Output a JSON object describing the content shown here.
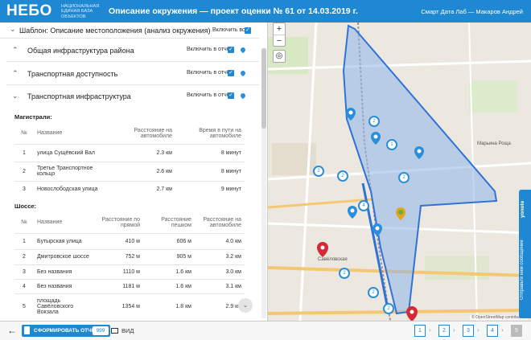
{
  "header": {
    "logo": "НЕБО",
    "logo_sub": "НАЦИОНАЛЬНАЯ ЕДИНАЯ БАЗА ОБЪЕКТОВ",
    "title": "Описание окружения — проект оценки № 61 от 14.03.2019 г.",
    "user": "Смарт Дата Лаб — Макаров Андрей"
  },
  "template": {
    "label": "Шаблон: Описание местоположения (анализ окружения)",
    "include_all": "Включить все"
  },
  "sections": [
    {
      "title": "Общая инфраструктура района",
      "include": "Включить в отчёт"
    },
    {
      "title": "Транспортная доступность",
      "include": "Включить в отчёт"
    },
    {
      "title": "Транспортная инфраструктура",
      "include": "Включить в отчёт"
    }
  ],
  "highways": {
    "label": "Магистрали:",
    "columns": [
      "№",
      "Название",
      "Расстояние на автомобиле",
      "Время в пути на автомобиле"
    ],
    "rows": [
      [
        "1",
        "улица Сущёвский Вал",
        "2.3 км",
        "8 минут"
      ],
      [
        "2",
        "Третье Транспортное кольцо",
        "2.6 км",
        "8 минут"
      ],
      [
        "3",
        "Новослободская улица",
        "2.7 км",
        "9 минут"
      ]
    ]
  },
  "roads": {
    "label": "Шоссе:",
    "columns": [
      "№",
      "Название",
      "Расстояние по прямой",
      "Расстояние пешком",
      "Расстояние на автомобиле"
    ],
    "rows": [
      [
        "1",
        "Бутырская улица",
        "410 м",
        "606 м",
        "4.0 км"
      ],
      [
        "2",
        "Дмитровское шоссе",
        "752 м",
        "905 м",
        "3.2 км"
      ],
      [
        "3",
        "Без названия",
        "1110 м",
        "1.6 км",
        "3.0 км"
      ],
      [
        "4",
        "Без названия",
        "1181 м",
        "1.6 км",
        "3.1 км"
      ],
      [
        "5",
        "площадь Савёловского Вокзала",
        "1354 м",
        "1.8 км",
        "2.9 км"
      ]
    ]
  },
  "map": {
    "zoom_in": "+",
    "zoom_out": "−",
    "attribution": "© OpenStreetMap contributors",
    "clusters": [
      "2",
      "1",
      "2",
      "2",
      "4",
      "2",
      "2",
      "2",
      "2"
    ],
    "feedback": "Отправьте нам сообщение",
    "feedback_brand": "yonote",
    "labels": [
      "Марьина Роща",
      "Савёловская"
    ]
  },
  "bottom": {
    "report_button": "СФОРМИРОВАТЬ ОТЧЁТ",
    "report_count": "999",
    "view": "ВИД",
    "steps": [
      "1",
      "2",
      "3",
      "4"
    ],
    "step_last": "5"
  },
  "colors": {
    "brand": "#1e88d2",
    "polygon_fill": "#8fb5ea",
    "polygon_stroke": "#2f73d9",
    "marker_red": "#d42a36"
  }
}
